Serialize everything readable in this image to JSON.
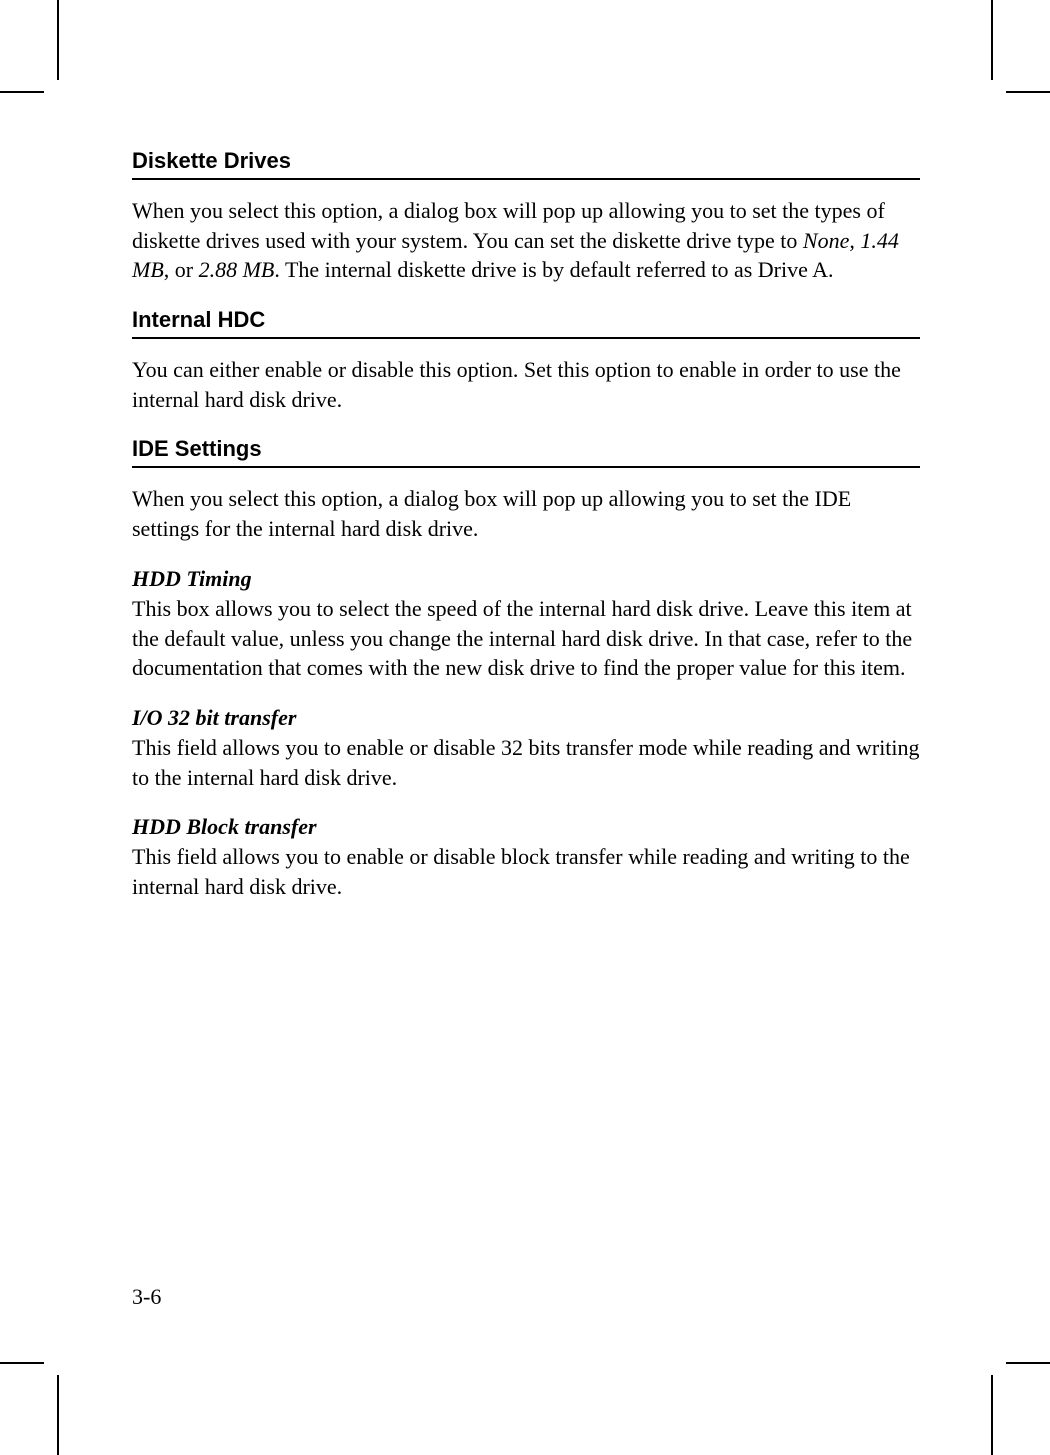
{
  "sections": {
    "diskette": {
      "heading": "Diskette Drives",
      "text_before_italic": "When you select this option, a dialog box will pop up allowing you to set the types of diskette drives used with your system. You can set the diskette drive type to ",
      "italic_text": "None, 1.44 MB",
      "text_mid": ", or ",
      "italic_text2": "2.88 MB",
      "text_after": ". The internal diskette drive is by default referred to as Drive A."
    },
    "internal_hdc": {
      "heading": "Internal HDC",
      "text": "You can either enable or disable this option. Set this option to enable in order to use the internal hard disk drive."
    },
    "ide": {
      "heading": "IDE Settings",
      "text": "When you select this option, a dialog box will pop up allowing you to set the IDE settings for the internal hard disk drive.",
      "hdd_timing": {
        "heading": "HDD Timing",
        "text": "This box allows you to select the speed of the internal hard disk drive. Leave this item at the default value, unless you change the internal hard disk drive. In that case, refer to the documentation that comes with the new disk drive to find the proper value for this item."
      },
      "io_32bit": {
        "heading": "I/O 32 bit transfer",
        "text": "This field allows you to enable or disable 32 bits transfer mode while reading and writing to the internal hard disk drive."
      },
      "hdd_block": {
        "heading": "HDD Block transfer",
        "text": "This field allows you to enable or disable block transfer while reading and writing to the internal hard disk drive."
      }
    }
  },
  "page_number": "3-6"
}
